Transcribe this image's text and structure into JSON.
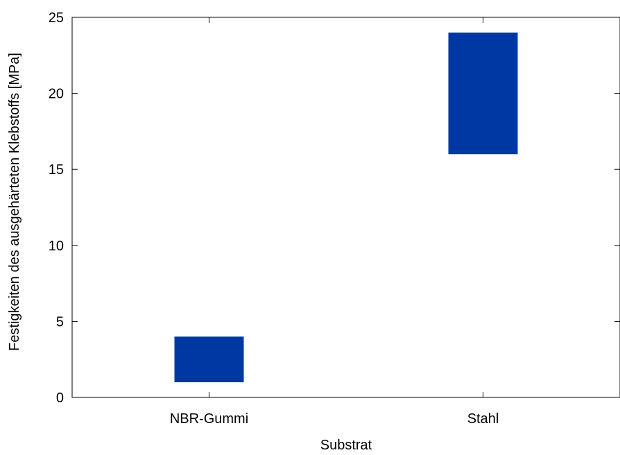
{
  "chart_data": {
    "type": "bar",
    "subtype": "floating-range",
    "title": "",
    "xlabel": "Substrat",
    "ylabel": "Festigkeiten des ausgehärteten Klebstoffs [MPa]",
    "categories": [
      "NBR-Gummi",
      "Stahl"
    ],
    "ranges": [
      {
        "low": 1,
        "high": 4
      },
      {
        "low": 16,
        "high": 24
      }
    ],
    "ylim": [
      0,
      25
    ],
    "yticks": [
      0,
      5,
      10,
      15,
      20,
      25
    ],
    "grid": false,
    "legend": "none",
    "bar_color": "#0038a3",
    "axis_color": "#000000"
  }
}
